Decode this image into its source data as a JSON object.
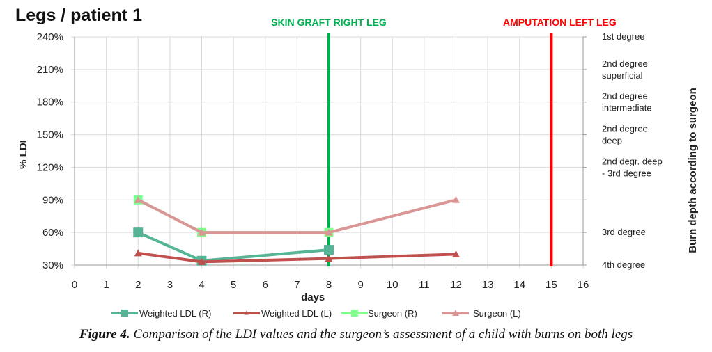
{
  "title": "Legs / patient 1",
  "caption": {
    "label": "Figure 4.",
    "text": " Comparison of the LDI values and the surgeon’s assessment of a child with burns on both legs"
  },
  "colors": {
    "weighted_r": "#55b496",
    "weighted_l": "#c0504d",
    "surgeon_r": "#7fff8f",
    "surgeon_l": "#d99694",
    "graft": "#00b050",
    "amputation": "#ff0000"
  },
  "chart_data": {
    "type": "line",
    "title": "Legs / patient 1",
    "xlabel": "days",
    "ylabel": "% LDI",
    "y2label": "Burn depth according  to surgeon",
    "xlim": [
      0,
      16
    ],
    "ylim": [
      30,
      240
    ],
    "xticks": [
      0,
      1,
      2,
      3,
      4,
      5,
      6,
      7,
      8,
      9,
      10,
      11,
      12,
      13,
      14,
      15,
      16
    ],
    "yticks": [
      30,
      60,
      90,
      120,
      150,
      180,
      210,
      240
    ],
    "ytick_labels": [
      "30%",
      "60%",
      "90%",
      "120%",
      "150%",
      "180%",
      "210%",
      "240%"
    ],
    "y2_labels": [
      {
        "value": 240,
        "lines": [
          "1st degree"
        ]
      },
      {
        "value": 210,
        "lines": [
          "2nd degree",
          "superficial"
        ]
      },
      {
        "value": 180,
        "lines": [
          "2nd degree",
          "intermediate"
        ]
      },
      {
        "value": 150,
        "lines": [
          "2nd degree",
          "deep"
        ]
      },
      {
        "value": 120,
        "lines": [
          "2nd degr. deep",
          "- 3rd degree"
        ]
      },
      {
        "value": 60,
        "lines": [
          "3rd degree"
        ]
      },
      {
        "value": 30,
        "lines": [
          "4th degree"
        ]
      }
    ],
    "grid": true,
    "legend_position": "bottom",
    "series": [
      {
        "name": "Weighted LDL (R)",
        "marker": "square",
        "color": "#55b496",
        "x": [
          2,
          4,
          8
        ],
        "y": [
          60,
          34,
          44
        ]
      },
      {
        "name": "Weighted LDL (L)",
        "marker": "triangle",
        "color": "#c0504d",
        "x": [
          2,
          4,
          8,
          12
        ],
        "y": [
          41,
          33,
          36,
          40
        ]
      },
      {
        "name": "Surgeon (R)",
        "marker": "square",
        "color": "#7fff8f",
        "x": [
          2,
          4,
          8
        ],
        "y": [
          90,
          60,
          60
        ]
      },
      {
        "name": "Surgeon (L)",
        "marker": "triangle",
        "color": "#d99694",
        "x": [
          2,
          4,
          8,
          12
        ],
        "y": [
          90,
          60,
          60,
          90
        ]
      }
    ],
    "annotations": [
      {
        "text": "SKIN  GRAFT  RIGHT  LEG",
        "x": 8,
        "color": "#00b050"
      },
      {
        "text": "AMPUTATION   LEFT LEG",
        "x": 15,
        "color": "#ff0000"
      }
    ]
  }
}
